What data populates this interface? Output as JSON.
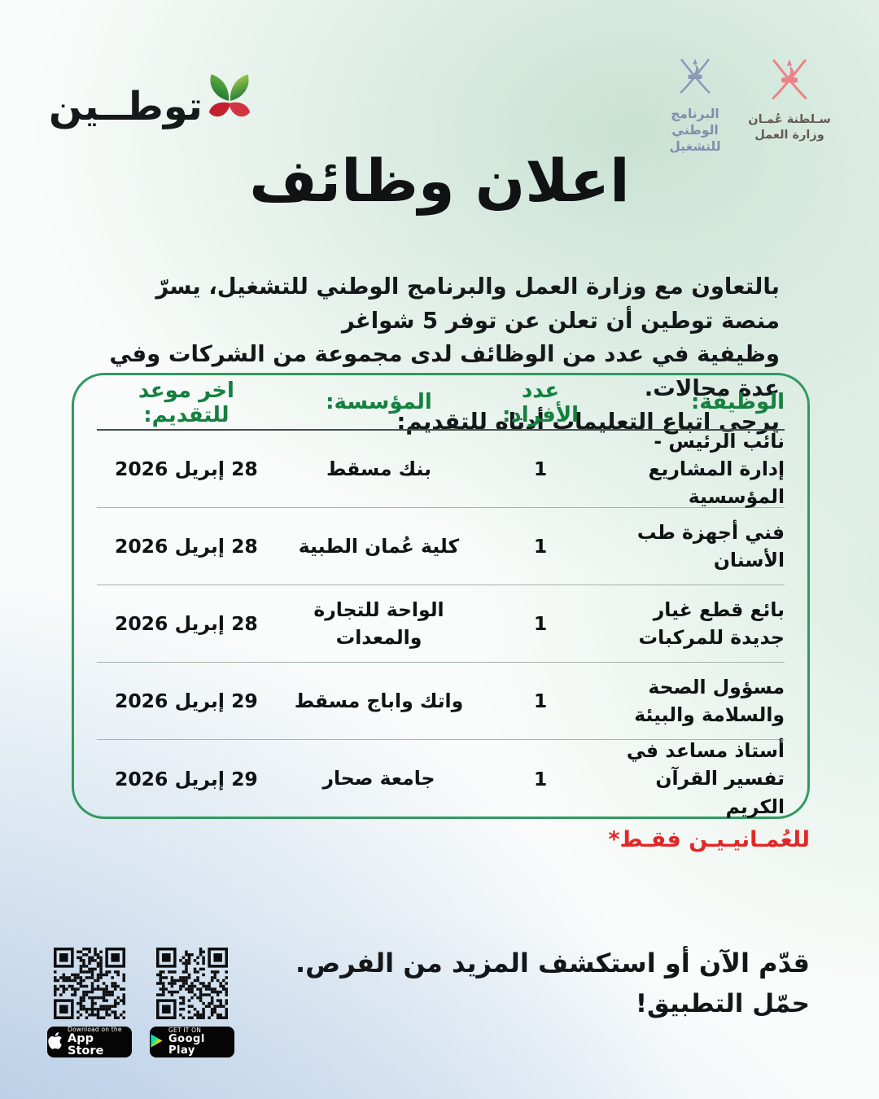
{
  "brand": {
    "wordmark": "توطــين"
  },
  "partners": {
    "nep": {
      "line1": "البرنامج الوطني",
      "line2": "للتشغيل"
    },
    "mol": {
      "line1": "سـلطنة عُمـان",
      "line2": "وزارة العمل"
    }
  },
  "title": "اعلان وظائف",
  "intro": {
    "line1": "بالتعاون مع وزارة العمل والبرنامج الوطني للتشغيل، يسرّ منصة توطين أن تعلن عن توفر 5 شواغر",
    "line2": "وظيفية في عدد من الوظائف لدى مجموعة من الشركات وفي عدة مجالات.",
    "line3": "يرجى اتباع التعليمات أدناه للتقديم:"
  },
  "jobs_table": {
    "headers": {
      "job": "الوظيفة:",
      "count": "عدد الأفراد:",
      "org": "المؤسسة:",
      "deadline": "اخر موعد للتقديم:"
    },
    "rows": [
      {
        "job": "نائب الرئيس - إدارة المشاريع المؤسسية",
        "count": "1",
        "org": "بنك مسقط",
        "deadline": "28 إبريل 2026"
      },
      {
        "job": "فني أجهزة طب الأسنان",
        "count": "1",
        "org": "كلية عُمان الطبية",
        "deadline": "28 إبريل 2026"
      },
      {
        "job": "بائع قطع غيار جديدة للمركبات",
        "count": "1",
        "org": "الواحة للتجارة والمعدات",
        "deadline": "28 إبريل 2026"
      },
      {
        "job": "مسؤول الصحة والسلامة والبيئة",
        "count": "1",
        "org": "واتك واباج مسقط",
        "deadline": "29 إبريل 2026"
      },
      {
        "job": "أستاذ مساعد في تفسير القرآن الكريم",
        "count": "1",
        "org": "جامعة صحار",
        "deadline": "29 إبريل 2026"
      }
    ]
  },
  "note": {
    "text": "للعُمـانيـيـن فقـط*"
  },
  "cta": {
    "line1": "قدّم الآن أو استكشف المزيد من الفرص.",
    "line2": "حمّل التطبيق!"
  },
  "store_badges": {
    "appstore": {
      "caption": "Download on the",
      "store": "App Store"
    },
    "googleplay": {
      "caption": "GET IT ON",
      "store": "Googl Play"
    }
  },
  "colors": {
    "card_border_green": "#2f9a5f",
    "header_green": "#15803f",
    "note_red": "#e22727",
    "nep_blue": "#8a9ab6",
    "mol_red": "#ec8287",
    "logo_green_dark": "#0f6b33",
    "logo_green_light": "#8cc63f",
    "logo_red": "#c3202f"
  }
}
